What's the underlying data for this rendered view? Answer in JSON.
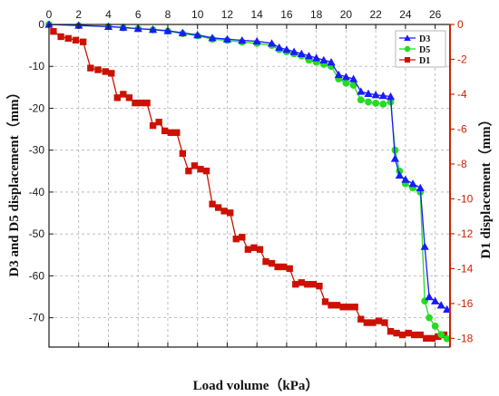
{
  "chart_data": {
    "type": "line",
    "xlabel": "Load volume（kPa）",
    "ylabel_left": "D3 and D5 displacement（mm）",
    "ylabel_right": "D1 displacement（mm）",
    "xlim": [
      0,
      27
    ],
    "ylim_left": [
      -77,
      0
    ],
    "ylim_right": [
      -18.5,
      0
    ],
    "x_ticks": [
      0,
      2,
      4,
      6,
      8,
      10,
      12,
      14,
      16,
      18,
      20,
      22,
      24,
      26
    ],
    "y_left_ticks": [
      -70,
      -60,
      -50,
      -40,
      -30,
      -20,
      -10,
      0
    ],
    "y_right_ticks": [
      -18,
      -16,
      -14,
      -12,
      -10,
      -8,
      -6,
      -4,
      -2,
      0
    ],
    "grid": true,
    "legend_position": "top-right",
    "colors": {
      "D3": "#1a1aff",
      "D5": "#22dd22",
      "D1": "#cc1100",
      "left_axis": "#1a1a1a",
      "right_axis": "#cc2200"
    },
    "series": [
      {
        "name": "D3",
        "axis": "left",
        "marker": "triangle",
        "x": [
          0,
          2,
          4,
          5,
          6,
          7,
          8,
          9,
          10,
          11,
          12,
          13,
          14,
          15,
          15.5,
          16,
          16.5,
          17,
          17.5,
          18,
          18.5,
          19,
          19.5,
          20,
          20.5,
          21,
          21.5,
          22,
          22.5,
          23,
          23.3,
          23.6,
          24,
          24.5,
          25,
          25.3,
          25.6,
          26,
          26.4,
          26.8
        ],
        "values": [
          0,
          -0.2,
          -0.5,
          -0.7,
          -1,
          -1.2,
          -1.5,
          -2,
          -2.5,
          -3.2,
          -3.5,
          -3.8,
          -4,
          -4.5,
          -5.5,
          -6,
          -6.5,
          -7,
          -7.5,
          -8,
          -8.5,
          -9,
          -12,
          -12.5,
          -13,
          -16,
          -16.5,
          -16.8,
          -17,
          -17.2,
          -32,
          -36,
          -37,
          -38,
          -39,
          -53,
          -65,
          -66,
          -67,
          -68
        ]
      },
      {
        "name": "D5",
        "axis": "left",
        "marker": "circle",
        "x": [
          0,
          2,
          4,
          5,
          6,
          7,
          8,
          9,
          10,
          11,
          12,
          13,
          14,
          15,
          15.5,
          16,
          16.5,
          17,
          17.5,
          18,
          18.5,
          19,
          19.5,
          20,
          20.5,
          21,
          21.5,
          22,
          22.5,
          23,
          23.3,
          23.6,
          24,
          24.5,
          25,
          25.3,
          25.6,
          26,
          26.4,
          26.8
        ],
        "values": [
          0,
          -0.3,
          -0.5,
          -0.8,
          -1,
          -1.3,
          -1.6,
          -2.2,
          -2.7,
          -3.5,
          -3.8,
          -4.2,
          -4.5,
          -5,
          -6,
          -6.5,
          -7,
          -7.5,
          -8.5,
          -9,
          -9.5,
          -10,
          -13,
          -14,
          -14.5,
          -18,
          -18.5,
          -18.8,
          -19,
          -18.5,
          -30,
          -35,
          -38,
          -39,
          -40,
          -66,
          -70,
          -72,
          -74,
          -75
        ]
      },
      {
        "name": "D1",
        "axis": "right",
        "marker": "square",
        "x": [
          0.3,
          0.8,
          1.3,
          1.8,
          2.3,
          2.8,
          3.3,
          3.8,
          4.2,
          4.6,
          5.0,
          5.4,
          5.8,
          6.2,
          6.6,
          7.0,
          7.4,
          7.8,
          8.2,
          8.6,
          9.0,
          9.4,
          9.8,
          10.2,
          10.6,
          11.0,
          11.4,
          11.8,
          12.2,
          12.6,
          13.0,
          13.4,
          13.8,
          14.2,
          14.6,
          15.0,
          15.4,
          15.8,
          16.2,
          16.6,
          17.0,
          17.4,
          17.8,
          18.2,
          18.6,
          19.0,
          19.4,
          19.8,
          20.2,
          20.6,
          21.0,
          21.4,
          21.8,
          22.2,
          22.6,
          23.0,
          23.4,
          23.8,
          24.2,
          24.6,
          25.0,
          25.4,
          25.8,
          26.2,
          26.6
        ],
        "values": [
          -0.4,
          -0.7,
          -0.8,
          -0.9,
          -1.0,
          -2.5,
          -2.6,
          -2.7,
          -2.8,
          -4.2,
          -4.0,
          -4.2,
          -4.5,
          -4.5,
          -4.5,
          -5.8,
          -5.6,
          -6.1,
          -6.2,
          -6.2,
          -7.4,
          -8.4,
          -8.1,
          -8.3,
          -8.4,
          -10.3,
          -10.5,
          -10.7,
          -10.8,
          -12.3,
          -12.2,
          -12.9,
          -12.8,
          -12.9,
          -13.6,
          -13.7,
          -13.9,
          -13.9,
          -14.0,
          -14.9,
          -14.8,
          -14.9,
          -14.9,
          -15.0,
          -15.9,
          -16.1,
          -16.1,
          -16.2,
          -16.2,
          -16.2,
          -16.9,
          -17.1,
          -17.1,
          -17.0,
          -17.1,
          -17.6,
          -17.7,
          -17.8,
          -17.7,
          -17.8,
          -17.8,
          -18.0,
          -18.0,
          -17.9,
          -17.8
        ]
      }
    ]
  }
}
